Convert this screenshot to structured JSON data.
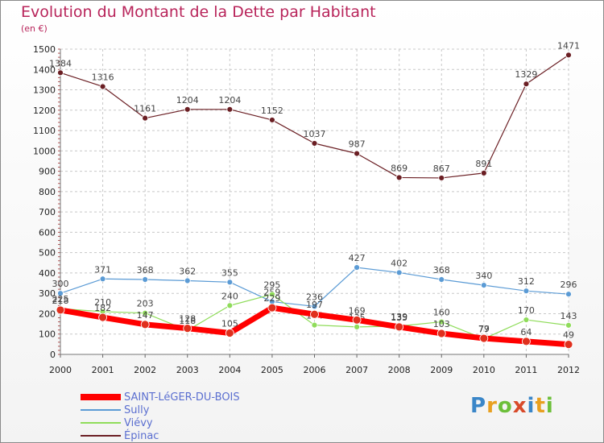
{
  "title": "Evolution du Montant de la Dette par Habitant",
  "unit": "(en €)",
  "logo": [
    "P",
    "r",
    "o",
    "x",
    "i",
    "t",
    "i"
  ],
  "logo_colors": [
    "#3a86c8",
    "#e8a020",
    "#6cbf3a",
    "#d84a2a",
    "#3a86c8",
    "#e8a020",
    "#6cbf3a"
  ],
  "chart_data": {
    "type": "line",
    "categories": [
      "2000",
      "2001",
      "2002",
      "2003",
      "2004",
      "2005",
      "2006",
      "2007",
      "2008",
      "2009",
      "2010",
      "2011",
      "2012"
    ],
    "ylim": [
      0,
      1500
    ],
    "yticks": [
      0,
      100,
      200,
      300,
      400,
      500,
      600,
      700,
      800,
      900,
      1000,
      1100,
      1200,
      1300,
      1400,
      1500
    ],
    "grid": true,
    "legend_position": "bottom-left",
    "series": [
      {
        "name": "Épinac",
        "color": "#6b1f24",
        "width": 1.2,
        "markerFill": "#6b1f24",
        "values": [
          1384,
          1316,
          1161,
          1204,
          1204,
          1152,
          1037,
          987,
          869,
          867,
          891,
          1329,
          1471
        ]
      },
      {
        "name": "Sully",
        "color": "#5b9bd5",
        "width": 1.2,
        "markerFill": "#5b9bd5",
        "values": [
          300,
          371,
          368,
          362,
          355,
          259,
          236,
          427,
          402,
          368,
          340,
          312,
          296
        ]
      },
      {
        "name": "Viévy",
        "color": "#8fdc5a",
        "width": 1.2,
        "markerFill": "#8fdc5a",
        "values": [
          225,
          210,
          203,
          118,
          240,
          295,
          144,
          135,
          139,
          160,
          77,
          170,
          143
        ]
      },
      {
        "name": "SAINT-LéGER-DU-BOIS",
        "color": "#ff0000",
        "width": 7,
        "markerFill": "#e0301e",
        "values": [
          218,
          182,
          147,
          128,
          105,
          229,
          197,
          169,
          135,
          103,
          79,
          64,
          49
        ]
      }
    ],
    "legend": [
      {
        "name": "SAINT-LéGER-DU-BOIS",
        "color": "#ff0000",
        "width": 8
      },
      {
        "name": "Sully",
        "color": "#5b9bd5",
        "width": 2
      },
      {
        "name": "Viévy",
        "color": "#8fdc5a",
        "width": 2
      },
      {
        "name": "Épinac",
        "color": "#6b1f24",
        "width": 2
      }
    ]
  }
}
